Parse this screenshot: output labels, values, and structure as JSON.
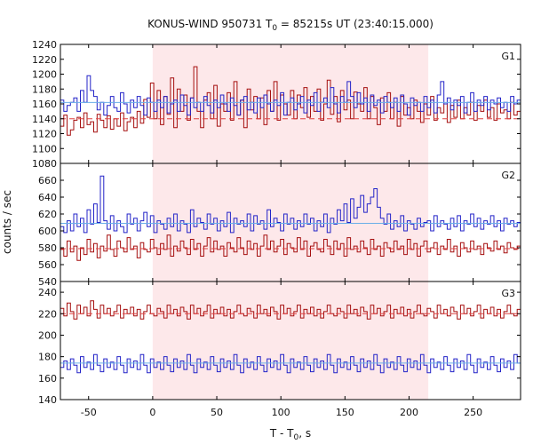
{
  "chart_data": {
    "type": "line",
    "title": "KONUS-WIND 950731 T0 = 85215s UT (23:40:15.000)",
    "title_parts": {
      "pre": "KONUS-WIND 950731 T",
      "sub": "0",
      "post": " = 85215s UT (23:40:15.000)"
    },
    "xlabel": "T - T0, s",
    "xlabel_parts": {
      "pre": "T - T",
      "sub": "0",
      "post": ", s"
    },
    "ylabel": "counts / sec",
    "xlim": [
      -72,
      287
    ],
    "xticks": [
      -50,
      0,
      50,
      100,
      150,
      200,
      250
    ],
    "highlight_interval": [
      0,
      215
    ],
    "colors": {
      "series_red": "#a50f0f",
      "series_blue": "#2323c8",
      "fit_red": "#e04040",
      "fit_blue": "#6aaee8",
      "highlight": "#fde8ea"
    },
    "panels": [
      {
        "label": "G1",
        "ylim": [
          1080,
          1240
        ],
        "yticks": [
          1080,
          1100,
          1120,
          1140,
          1160,
          1180,
          1200,
          1220,
          1240
        ],
        "fits": {
          "red": 1140,
          "blue": 1162
        },
        "series": [
          {
            "color": "red",
            "values": [
              1130,
              1145,
              1118,
              1125,
              1138,
              1142,
              1128,
              1148,
              1132,
              1136,
              1122,
              1146,
              1138,
              1128,
              1144,
              1126,
              1140,
              1130,
              1148,
              1124,
              1136,
              1142,
              1128,
              1150,
              1134,
              1166,
              1142,
              1188,
              1140,
              1178,
              1132,
              1170,
              1146,
              1195,
              1128,
              1180,
              1150,
              1172,
              1138,
              1168,
              1210,
              1150,
              1128,
              1165,
              1175,
              1140,
              1185,
              1130,
              1160,
              1150,
              1175,
              1138,
              1190,
              1145,
              1165,
              1128,
              1180,
              1152,
              1170,
              1140,
              1168,
              1132,
              1178,
              1150,
              1190,
              1138,
              1172,
              1160,
              1145,
              1178,
              1140,
              1172,
              1155,
              1182,
              1142,
              1170,
              1150,
              1180,
              1138,
              1160,
              1192,
              1146,
              1170,
              1136,
              1178,
              1152,
              1165,
              1140,
              1176,
              1160,
              1150,
              1182,
              1140,
              1170,
              1155,
              1132,
              1168,
              1150,
              1175,
              1140,
              1162,
              1130,
              1170,
              1145,
              1155,
              1140,
              1165,
              1150,
              1135,
              1160,
              1145,
              1170,
              1138,
              1155,
              1148,
              1160,
              1135,
              1158,
              1142,
              1165,
              1140,
              1155,
              1145,
              1162,
              1138,
              1158,
              1150,
              1165,
              1142,
              1155,
              1138,
              1160,
              1148,
              1152,
              1140,
              1162,
              1145,
              1150
            ]
          },
          {
            "color": "blue",
            "values": [
              1165,
              1150,
              1158,
              1162,
              1168,
              1150,
              1178,
              1162,
              1198,
              1178,
              1170,
              1152,
              1162,
              1145,
              1158,
              1170,
              1155,
              1150,
              1175,
              1160,
              1148,
              1165,
              1155,
              1170,
              1158,
              1145,
              1168,
              1162,
              1150,
              1165,
              1155,
              1170,
              1148,
              1160,
              1165,
              1150,
              1172,
              1158,
              1145,
              1168,
              1155,
              1162,
              1150,
              1170,
              1158,
              1148,
              1165,
              1155,
              1172,
              1160,
              1150,
              1168,
              1158,
              1145,
              1165,
              1170,
              1152,
              1162,
              1148,
              1168,
              1155,
              1172,
              1160,
              1150,
              1165,
              1158,
              1175,
              1145,
              1162,
              1168,
              1152,
              1160,
              1170,
              1148,
              1165,
              1158,
              1175,
              1150,
              1162,
              1168,
              1155,
              1182,
              1160,
              1148,
              1170,
              1162,
              1190,
              1170,
              1155,
              1175,
              1160,
              1168,
              1150,
              1172,
              1158,
              1165,
              1148,
              1170,
              1162,
              1155,
              1168,
              1150,
              1172,
              1160,
              1145,
              1168,
              1158,
              1162,
              1150,
              1170,
              1155,
              1165,
              1148,
              1172,
              1190,
              1160,
              1168,
              1152,
              1165,
              1158,
              1170,
              1148,
              1162,
              1175,
              1150,
              1165,
              1158,
              1170,
              1152,
              1165,
              1160,
              1168,
              1155,
              1162,
              1150,
              1170,
              1160,
              1165
            ]
          }
        ]
      },
      {
        "label": "G2",
        "ylim": [
          540,
          680
        ],
        "yticks": [
          540,
          560,
          580,
          600,
          620,
          640,
          660
        ],
        "fits": {
          "red": 579,
          "blue": 609
        },
        "series": [
          {
            "color": "red",
            "values": [
              578,
              570,
              588,
              575,
              582,
              565,
              580,
              572,
              590,
              575,
              585,
              568,
              582,
              576,
              595,
              578,
              570,
              588,
              580,
              575,
              592,
              578,
              582,
              568,
              586,
              578,
              575,
              590,
              580,
              572,
              585,
              578,
              595,
              570,
              582,
              576,
              588,
              580,
              572,
              590,
              578,
              585,
              570,
              582,
              592,
              575,
              588,
              578,
              582,
              570,
              586,
              580,
              575,
              592,
              580,
              572,
              588,
              578,
              585,
              570,
              582,
              595,
              578,
              588,
              575,
              582,
              590,
              572,
              585,
              580,
              575,
              592,
              578,
              588,
              570,
              582,
              586,
              578,
              575,
              590,
              582,
              572,
              588,
              578,
              585,
              570,
              592,
              578,
              582,
              575,
              588,
              580,
              572,
              590,
              578,
              582,
              570,
              586,
              580,
              575,
              588,
              578,
              582,
              572,
              590,
              578,
              585,
              570,
              582,
              588,
              575,
              580,
              586,
              572,
              582,
              578,
              590,
              575,
              582,
              570,
              586,
              580,
              575,
              588,
              578,
              582,
              572,
              585,
              580,
              576,
              588,
              578,
              582,
              574,
              586,
              580,
              578,
              582
            ]
          },
          {
            "color": "blue",
            "values": [
              605,
              598,
              612,
              600,
              620,
              605,
              615,
              598,
              625,
              608,
              632,
              610,
              665,
              612,
              602,
              618,
              600,
              612,
              605,
              598,
              620,
              608,
              615,
              600,
              612,
              622,
              605,
              618,
              598,
              612,
              608,
              602,
              615,
              605,
              620,
              600,
              612,
              608,
              598,
              625,
              605,
              615,
              610,
              602,
              620,
              608,
              615,
              600,
              612,
              605,
              622,
              598,
              615,
              608,
              612,
              605,
              620,
              600,
              618,
              608,
              612,
              602,
              625,
              605,
              615,
              610,
              600,
              620,
              608,
              615,
              602,
              612,
              605,
              620,
              608,
              615,
              600,
              612,
              605,
              620,
              598,
              615,
              608,
              625,
              612,
              632,
              610,
              638,
              615,
              628,
              642,
              622,
              632,
              640,
              650,
              628,
              615,
              608,
              620,
              602,
              612,
              605,
              618,
              600,
              612,
              608,
              602,
              615,
              605,
              610,
              612,
              600,
              618,
              605,
              612,
              608,
              602,
              615,
              605,
              618,
              600,
              612,
              608,
              620,
              605,
              615,
              602,
              612,
              608,
              618,
              605,
              612,
              600,
              615,
              608,
              612,
              605,
              610
            ]
          }
        ]
      },
      {
        "label": "G3",
        "ylim": [
          140,
          250
        ],
        "yticks": [
          140,
          160,
          180,
          200,
          220,
          240
        ],
        "fits": {
          "red": 220,
          "blue": 174
        },
        "series": [
          {
            "color": "red",
            "values": [
              225,
              218,
              230,
              222,
              215,
              228,
              220,
              226,
              218,
              232,
              224,
              216,
              228,
              220,
              225,
              218,
              222,
              228,
              216,
              224,
              220,
              226,
              218,
              224,
              215,
              222,
              228,
              220,
              218,
              225,
              222,
              216,
              228,
              220,
              224,
              218,
              226,
              222,
              215,
              228,
              220,
              225,
              218,
              222,
              228,
              216,
              224,
              220,
              226,
              218,
              224,
              216,
              222,
              228,
              220,
              218,
              225,
              222,
              216,
              228,
              220,
              224,
              218,
              226,
              222,
              215,
              228,
              220,
              225,
              218,
              222,
              228,
              216,
              224,
              220,
              226,
              218,
              224,
              216,
              222,
              228,
              220,
              218,
              225,
              222,
              216,
              228,
              220,
              224,
              218,
              226,
              222,
              215,
              228,
              220,
              225,
              218,
              222,
              228,
              216,
              224,
              220,
              226,
              218,
              224,
              216,
              222,
              228,
              220,
              218,
              225,
              222,
              216,
              228,
              220,
              224,
              218,
              226,
              222,
              215,
              228,
              220,
              225,
              218,
              222,
              228,
              216,
              224,
              220,
              226,
              218,
              224,
              216,
              222,
              228,
              220,
              218,
              224
            ]
          },
          {
            "color": "blue",
            "values": [
              170,
              176,
              168,
              178,
              172,
              165,
              180,
              170,
              175,
              168,
              182,
              172,
              166,
              178,
              170,
              175,
              168,
              180,
              172,
              165,
              178,
              170,
              176,
              168,
              182,
              172,
              165,
              178,
              170,
              175,
              168,
              180,
              172,
              166,
              178,
              170,
              176,
              168,
              182,
              172,
              165,
              178,
              170,
              175,
              168,
              180,
              172,
              166,
              178,
              170,
              176,
              168,
              182,
              172,
              165,
              178,
              170,
              175,
              168,
              180,
              172,
              166,
              178,
              170,
              176,
              168,
              182,
              172,
              165,
              178,
              170,
              175,
              168,
              180,
              172,
              166,
              178,
              170,
              176,
              168,
              182,
              172,
              165,
              178,
              170,
              175,
              168,
              180,
              172,
              166,
              178,
              170,
              176,
              168,
              182,
              172,
              165,
              178,
              170,
              175,
              168,
              180,
              172,
              166,
              178,
              170,
              176,
              168,
              182,
              172,
              165,
              178,
              170,
              175,
              168,
              180,
              172,
              166,
              178,
              170,
              176,
              168,
              182,
              172,
              165,
              178,
              170,
              175,
              168,
              180,
              172,
              166,
              178,
              170,
              176,
              168,
              182,
              174
            ]
          }
        ]
      }
    ]
  }
}
